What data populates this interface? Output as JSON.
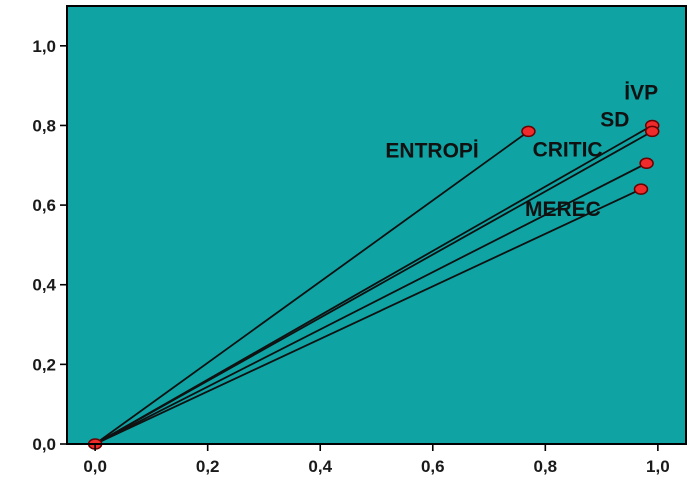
{
  "chart_data": {
    "type": "scatter",
    "title": "",
    "xlabel": "",
    "ylabel": "",
    "xlim": [
      -0.05,
      1.05
    ],
    "ylim": [
      0.0,
      1.1
    ],
    "x_ticks": [
      {
        "value": 0.0,
        "label": "0,0"
      },
      {
        "value": 0.2,
        "label": "0,2"
      },
      {
        "value": 0.4,
        "label": "0,4"
      },
      {
        "value": 0.6,
        "label": "0,6"
      },
      {
        "value": 0.8,
        "label": "0,8"
      },
      {
        "value": 1.0,
        "label": "1,0"
      }
    ],
    "y_ticks": [
      {
        "value": 0.0,
        "label": "0,0"
      },
      {
        "value": 0.2,
        "label": "0,2"
      },
      {
        "value": 0.4,
        "label": "0,4"
      },
      {
        "value": 0.6,
        "label": "0,6"
      },
      {
        "value": 0.8,
        "label": "0,8"
      },
      {
        "value": 1.0,
        "label": "1,0"
      }
    ],
    "origin": {
      "x": 0.0,
      "y": 0.0
    },
    "vectors_from_origin": true,
    "grid": false,
    "points": [
      {
        "label": "ENTROPİ",
        "x": 0.77,
        "y": 0.785
      },
      {
        "label": "İVP",
        "x": 0.99,
        "y": 0.8
      },
      {
        "label": "SD",
        "x": 0.99,
        "y": 0.785
      },
      {
        "label": "CRITIC",
        "x": 0.98,
        "y": 0.705
      },
      {
        "label": "MEREC",
        "x": 0.97,
        "y": 0.64
      }
    ],
    "colors": {
      "plot_background": "#0fa3a3",
      "frame": "#000000",
      "point_fill": "#ef2b2b",
      "point_stroke": "#6b0000",
      "vector_line": "#111111"
    }
  }
}
